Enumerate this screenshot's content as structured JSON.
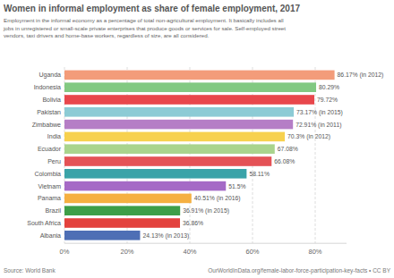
{
  "chart_data": {
    "type": "bar",
    "orientation": "horizontal",
    "title": "Women in informal employment as share of female employment, 2017",
    "subtitle": [
      "Employment in the informal economy as a percentage of total non-agricultural employment. It basically includes all",
      "jobs in unregistered or small-scale private enterprises that produce goods or services for sale. Self-employed street",
      "vendors, taxi drivers and home-base workers, regardless of size, are all considered."
    ],
    "source": "Source: World Bank",
    "credit": "OurWorldInData.org/female-labor-force-participation-key-facts • CC BY",
    "categories": [
      "Uganda",
      "Indonesia",
      "Bolivia",
      "Pakistan",
      "Zimbabwe",
      "India",
      "Ecuador",
      "Peru",
      "Colombia",
      "Vietnam",
      "Panama",
      "Brazil",
      "South Africa",
      "Albania"
    ],
    "values": [
      86.17,
      80.29,
      79.72,
      73.17,
      72.91,
      70.3,
      67.08,
      66.08,
      58.11,
      51.5,
      40.51,
      36.91,
      36.86,
      24.13
    ],
    "value_labels": [
      "86.17% (in 2012)",
      "80.29%",
      "79.72%",
      "73.17% (in 2015)",
      "72.91% (in 2011)",
      "70.3% (in 2012)",
      "67.08%",
      "66.08%",
      "58.11%",
      "51.5%",
      "40.51% (in 2016)",
      "36.91% (in 2015)",
      "36.86%",
      "24.13% (in 2013)"
    ],
    "colors": [
      "#f39c7a",
      "#82c982",
      "#e8474c",
      "#8ccbd5",
      "#b57ec6",
      "#f7d14e",
      "#a9d48d",
      "#e45256",
      "#3aa3a8",
      "#a56ac6",
      "#f5b041",
      "#3d9e48",
      "#e3423e",
      "#4e6fb5"
    ],
    "data_labels": true,
    "grid": true,
    "xlim": [
      0,
      90
    ],
    "xticks": [
      {
        "value": 0,
        "label": "0%"
      },
      {
        "value": 20,
        "label": "20%"
      },
      {
        "value": 40,
        "label": "40%"
      },
      {
        "value": 60,
        "label": "60%"
      },
      {
        "value": 80,
        "label": "80%"
      }
    ]
  }
}
